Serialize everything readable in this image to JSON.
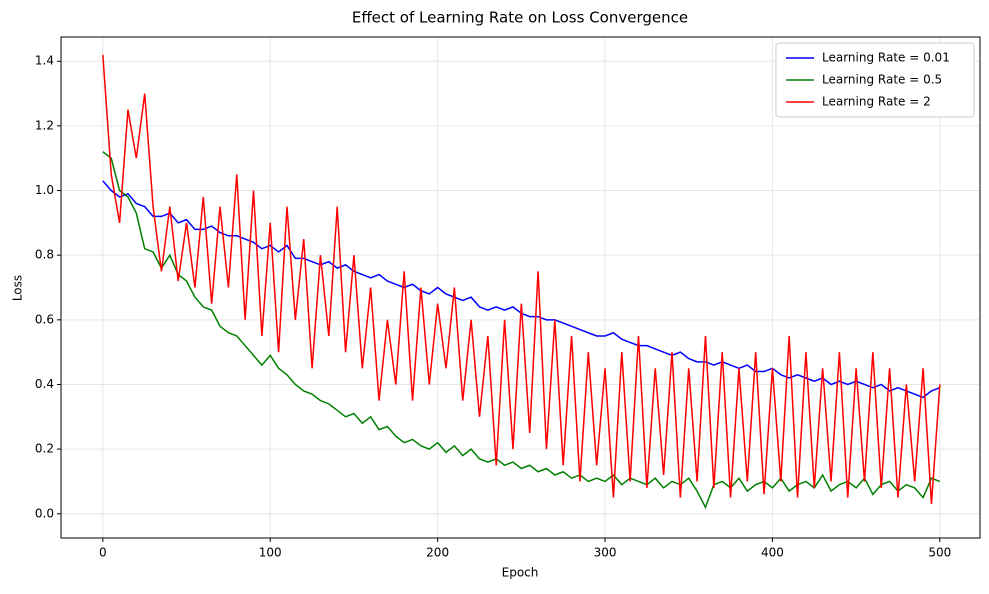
{
  "chart_data": {
    "type": "line",
    "title": "Effect of Learning Rate on Loss Convergence",
    "x_label": "Epoch",
    "y_label": "Loss",
    "x": [
      0,
      5,
      10,
      15,
      20,
      25,
      30,
      35,
      40,
      45,
      50,
      55,
      60,
      65,
      70,
      75,
      80,
      85,
      90,
      95,
      100,
      105,
      110,
      115,
      120,
      125,
      130,
      135,
      140,
      145,
      150,
      155,
      160,
      165,
      170,
      175,
      180,
      185,
      190,
      195,
      200,
      205,
      210,
      215,
      220,
      225,
      230,
      235,
      240,
      245,
      250,
      255,
      260,
      265,
      270,
      275,
      280,
      285,
      290,
      295,
      300,
      305,
      310,
      315,
      320,
      325,
      330,
      335,
      340,
      345,
      350,
      355,
      360,
      365,
      370,
      375,
      380,
      385,
      390,
      395,
      400,
      405,
      410,
      415,
      420,
      425,
      430,
      435,
      440,
      445,
      450,
      455,
      460,
      465,
      470,
      475,
      480,
      485,
      490,
      495,
      500
    ],
    "series": [
      {
        "name": "Learning Rate = 0.01",
        "color": "#0000ff",
        "values": [
          1.03,
          1.0,
          0.98,
          0.99,
          0.96,
          0.95,
          0.92,
          0.92,
          0.93,
          0.9,
          0.91,
          0.88,
          0.88,
          0.89,
          0.87,
          0.86,
          0.86,
          0.85,
          0.84,
          0.82,
          0.83,
          0.81,
          0.83,
          0.79,
          0.79,
          0.78,
          0.77,
          0.78,
          0.76,
          0.77,
          0.75,
          0.74,
          0.73,
          0.74,
          0.72,
          0.71,
          0.7,
          0.71,
          0.69,
          0.68,
          0.7,
          0.68,
          0.67,
          0.66,
          0.67,
          0.64,
          0.63,
          0.64,
          0.63,
          0.64,
          0.62,
          0.61,
          0.61,
          0.6,
          0.6,
          0.59,
          0.58,
          0.57,
          0.56,
          0.55,
          0.55,
          0.56,
          0.54,
          0.53,
          0.52,
          0.52,
          0.51,
          0.5,
          0.49,
          0.5,
          0.48,
          0.47,
          0.47,
          0.46,
          0.47,
          0.46,
          0.45,
          0.46,
          0.44,
          0.44,
          0.45,
          0.43,
          0.42,
          0.43,
          0.42,
          0.41,
          0.42,
          0.4,
          0.41,
          0.4,
          0.41,
          0.4,
          0.39,
          0.4,
          0.38,
          0.39,
          0.38,
          0.37,
          0.36,
          0.38,
          0.39
        ]
      },
      {
        "name": "Learning Rate = 0.5",
        "color": "#008000",
        "values": [
          1.12,
          1.1,
          1.0,
          0.98,
          0.93,
          0.82,
          0.81,
          0.76,
          0.8,
          0.74,
          0.72,
          0.67,
          0.64,
          0.63,
          0.58,
          0.56,
          0.55,
          0.52,
          0.49,
          0.46,
          0.49,
          0.45,
          0.43,
          0.4,
          0.38,
          0.37,
          0.35,
          0.34,
          0.32,
          0.3,
          0.31,
          0.28,
          0.3,
          0.26,
          0.27,
          0.24,
          0.22,
          0.23,
          0.21,
          0.2,
          0.22,
          0.19,
          0.21,
          0.18,
          0.2,
          0.17,
          0.16,
          0.17,
          0.15,
          0.16,
          0.14,
          0.15,
          0.13,
          0.14,
          0.12,
          0.13,
          0.11,
          0.12,
          0.1,
          0.11,
          0.1,
          0.12,
          0.09,
          0.11,
          0.1,
          0.09,
          0.11,
          0.08,
          0.1,
          0.09,
          0.11,
          0.07,
          0.02,
          0.09,
          0.1,
          0.08,
          0.11,
          0.07,
          0.09,
          0.1,
          0.08,
          0.11,
          0.07,
          0.09,
          0.1,
          0.08,
          0.12,
          0.07,
          0.09,
          0.1,
          0.08,
          0.11,
          0.06,
          0.09,
          0.1,
          0.07,
          0.09,
          0.08,
          0.05,
          0.11,
          0.1
        ]
      },
      {
        "name": "Learning Rate = 2",
        "color": "#ff0000",
        "values": [
          1.42,
          1.05,
          0.9,
          1.25,
          1.1,
          1.3,
          0.95,
          0.75,
          0.95,
          0.72,
          0.9,
          0.7,
          0.98,
          0.65,
          0.95,
          0.7,
          1.05,
          0.6,
          1.0,
          0.55,
          0.9,
          0.5,
          0.95,
          0.6,
          0.85,
          0.45,
          0.8,
          0.55,
          0.95,
          0.5,
          0.8,
          0.45,
          0.7,
          0.35,
          0.6,
          0.4,
          0.75,
          0.35,
          0.7,
          0.4,
          0.65,
          0.45,
          0.7,
          0.35,
          0.6,
          0.3,
          0.55,
          0.15,
          0.6,
          0.2,
          0.65,
          0.25,
          0.75,
          0.2,
          0.6,
          0.15,
          0.55,
          0.1,
          0.5,
          0.15,
          0.45,
          0.05,
          0.5,
          0.1,
          0.55,
          0.08,
          0.45,
          0.12,
          0.5,
          0.05,
          0.45,
          0.1,
          0.55,
          0.08,
          0.5,
          0.05,
          0.45,
          0.1,
          0.5,
          0.06,
          0.45,
          0.1,
          0.55,
          0.05,
          0.5,
          0.08,
          0.45,
          0.1,
          0.5,
          0.05,
          0.45,
          0.1,
          0.5,
          0.08,
          0.45,
          0.05,
          0.4,
          0.1,
          0.45,
          0.03,
          0.4
        ]
      }
    ],
    "xlim": [
      -25,
      524
    ],
    "ylim": [
      -0.075,
      1.475
    ],
    "xticks": [
      0,
      100,
      200,
      300,
      400,
      500
    ],
    "yticks": [
      {
        "value": 0,
        "label": "0.0"
      },
      {
        "value": 0.2,
        "label": "0.2"
      },
      {
        "value": 0.4,
        "label": "0.4"
      },
      {
        "value": 0.6,
        "label": "0.6"
      },
      {
        "value": 0.8,
        "label": "0.8"
      },
      {
        "value": 1.0,
        "label": "1.0"
      },
      {
        "value": 1.2,
        "label": "1.2"
      },
      {
        "value": 1.4,
        "label": "1.4"
      }
    ],
    "grid": true,
    "legend": "upper right"
  }
}
